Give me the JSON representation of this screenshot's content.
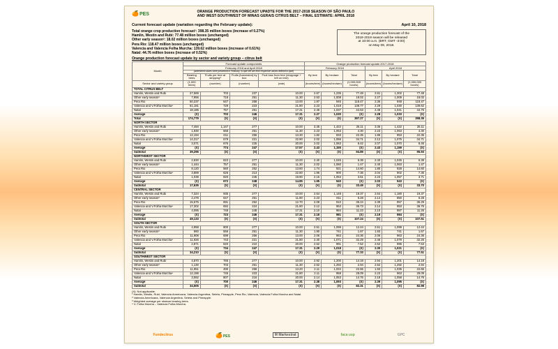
{
  "header": {
    "brand": "PES",
    "title_l1": "ORANGE PRODUCTION FORECAST UPADTE FOR THE 2017-2018 SEASON OF SÃO PAULO",
    "title_l2": "AND WEST-SOUTHWEST OF MINAS GERAIS CITRUS BELT – FINAL ESTIMATE: APRIL 2018"
  },
  "meta": {
    "current_label": "Current forecast update (variation regarding the February update):",
    "date": "April 10, 2018"
  },
  "summary_lines": [
    {
      "b": "Total orange crop production forecast¹: 398.35 million boxes (increase of 0.27%)"
    },
    {
      "b": "Hamlin, Westin and Rubi: 77.48 million boxes (unchanged)"
    },
    {
      "b": "Other early season²: 18.02 million boxes (unchanged)"
    },
    {
      "b": "Pera Rio: 118.47 million boxes (unchanged)"
    },
    {
      "b": "Valencia and Valencia Folha Murcha: 139.62 million boxes (increase of 0.61%)"
    },
    {
      "b": "Natal: 44.76 million boxes (increase of 0.52%)"
    }
  ],
  "callout": {
    "l1": "The orange production forecast of the",
    "l2": "2018-2019 season will be released",
    "l3": "at 10:00 a.m. (BRT, GMT -3:00)",
    "l4": "on May 09, 2018."
  },
  "table_heading": "Orange production forecast update by sector and variety group – citrus belt",
  "col_headers": {
    "h_fc": "Forecast update components",
    "h_fc2": "February 2018 and April 2018",
    "h_note": "(underlined values were presented in February. In April left are their respective values defined in April)",
    "h_opf": "Orange production forecast update 2017-2018",
    "h_feb": "February 2018",
    "h_apr": "April 2018",
    "c1": "Bearing trees",
    "c2": "Fruits per tree at stripping³",
    "c3": "Fruits (harvested) by box",
    "c4": "Fruit loss from tree (droppage + left on tree)",
    "c5": "By tree",
    "c6": "By hectare",
    "c7": "Total",
    "c8": "By tree",
    "c9": "By hectare",
    "c10": "Total",
    "u1": "(1,000 trees)",
    "u2": "(number)",
    "u3": "(number)",
    "u4": "(rate)",
    "u5": "(boxes/tree)",
    "u6": "(boxes/hectare)",
    "u7": "(1,000,000 boxes)",
    "u8": "(boxes/tree)",
    "u9": "(boxes/hectare)",
    "u10": "(1,000,000 boxes)",
    "mon": "Month",
    "svg": "Sector and variety group"
  },
  "groups": [
    {
      "name": "TOTAL CITRUS BELT",
      "rows": [
        [
          "Hamlin, Westin and Rubi",
          "27,569",
          "703",
          "237",
          "10.00",
          "2.67",
          "1,235",
          "77.48",
          "2.81",
          "1,302",
          "77.48"
        ],
        [
          "Other early season²",
          "7,956",
          "718",
          "251",
          "11.30",
          "2.53",
          "1,008",
          "18.02",
          "2.27",
          "1,009",
          "18.02"
        ],
        [
          "Pera Rio",
          "50,237",
          "647",
          "258",
          "13.00",
          "1.97",
          "945",
          "118.47",
          "2.36",
          "948",
          "118.47"
        ],
        [
          "Valencia and V.Folha Murcha⁴",
          "61,181",
          "729",
          "223",
          "21.80",
          "2.23",
          "1,018",
          "138.77",
          "2.29",
          "1,030",
          "139.62"
        ],
        [
          "Natal",
          "18,185",
          "757",
          "251",
          "17.31",
          "2.46",
          "1,037",
          "44.53",
          "2.48",
          "1,041",
          "44.76"
        ],
        [
          "Average",
          "(X)",
          "703",
          "246",
          "17.31",
          "2.27",
          "1,030",
          "(X)",
          "2.28",
          "1,033",
          "(X)"
        ],
        [
          "Total",
          "174,779",
          "(X)",
          "(X)",
          "(X)",
          "(X)",
          "(X)",
          "397.27",
          "(X)",
          "(X)",
          "398.35"
        ]
      ]
    },
    {
      "name": "NORTH SECTOR",
      "rows": [
        [
          "Hamlin, Westin and Rubi",
          "7,494",
          "1,147",
          "277",
          "10.00",
          "3.35",
          "1,422",
          "25.11",
          "3.35",
          "1,422",
          "25.11"
        ],
        [
          "Other early season²",
          "1,930",
          "668",
          "251",
          "11.30",
          "2.23",
          "1,053",
          "4.30",
          "2.23",
          "1,053",
          "4.30"
        ],
        [
          "Pera Rio",
          "12,194",
          "611",
          "255",
          "13.30",
          "1.82",
          "933",
          "22.35",
          "1.86",
          "953",
          "22.35"
        ],
        [
          "Valencia and V.Folha Murcha⁴",
          "14,317",
          "679",
          "221",
          "22.90",
          "2.02",
          "1,066",
          "34.71",
          "2.12",
          "1,075",
          "34.71"
        ],
        [
          "Natal",
          "3,071",
          "676",
          "225",
          "20.00",
          "2.02",
          "1,063",
          "8.42",
          "2.07",
          "1,070",
          "8.46"
        ],
        [
          "Average",
          "(X)",
          "774",
          "247",
          "17.57",
          "2.43",
          "1,155",
          "(X)",
          "2.43",
          "1,159",
          "(X)"
        ],
        [
          "Subtotal",
          "39,296",
          "(X)",
          "(X)",
          "(X)",
          "(X)",
          "(X)",
          "94.89",
          "(X)",
          "(X)",
          "95.93"
        ]
      ]
    },
    {
      "name": "NORTHWEST SECTOR",
      "rows": [
        [
          "Hamlin, Westin and Rubi",
          "2,830",
          "823",
          "277",
          "10.00",
          "2.40",
          "1,045",
          "6.38",
          "2.40",
          "1,045",
          "6.38"
        ],
        [
          "Other early season²",
          "1,444",
          "757",
          "251",
          "11.30",
          "2.02",
          "1,060",
          "1.47",
          "2.40",
          "1,063",
          "1.47"
        ],
        [
          "Pera Rio",
          "8,120",
          "560",
          "252",
          "13.60",
          "1.74",
          "921",
          "14.60",
          "1.80",
          "928",
          "14.60"
        ],
        [
          "Valencia and V.Folha Murcha⁴",
          "3,889",
          "626",
          "213",
          "22.80",
          "1.96",
          "900",
          "7.36",
          "2.04",
          "902",
          "7.36"
        ],
        [
          "Natal",
          "1,038",
          "820",
          "245",
          "19.90",
          "2.15",
          "1,053",
          "3.51",
          "2.23",
          "1,057",
          "3.71"
        ],
        [
          "Average",
          "(X)",
          "672",
          "248",
          "14.85",
          "1.95",
          "940",
          "(X)",
          "2.03",
          "943",
          "(X)"
        ],
        [
          "Subtotal",
          "17,635",
          "(X)",
          "(X)",
          "(X)",
          "(X)",
          "(X)",
          "33.49",
          "(X)",
          "(X)",
          "33.70"
        ]
      ]
    },
    {
      "name": "CENTRAL SECTOR",
      "rows": [
        [
          "Hamlin, Westin and Rubi",
          "7,324",
          "935",
          "277",
          "10.00",
          "2.64",
          "1,148",
          "19.37",
          "2.64",
          "1,180",
          "19.37"
        ],
        [
          "Other early season²",
          "2,478",
          "647",
          "251",
          "11.80",
          "2.23",
          "811",
          "6.28",
          "2.14",
          "850",
          "6.28"
        ],
        [
          "Pera Rio",
          "15,575",
          "691",
          "252",
          "12.70",
          "2.08",
          "910",
          "36.24",
          "2.39",
          "957",
          "36.29"
        ],
        [
          "Valencia and V.Folha Murcha⁴",
          "17,302",
          "692",
          "224",
          "21.80",
          "2.12",
          "953",
          "36.73",
          "2.14",
          "953",
          "36.76"
        ],
        [
          "Natal",
          "4,095",
          "748",
          "248",
          "17.31",
          "2.10",
          "984",
          "11.23",
          "2.10",
          "987",
          "11.26"
        ],
        [
          "Average",
          "(X)",
          "723",
          "246",
          "17.31",
          "2.18",
          "981",
          "(X)",
          "2.19",
          "984",
          "(X)"
        ],
        [
          "Subtotal",
          "49,133",
          "(X)",
          "(X)",
          "(X)",
          "(X)",
          "(X)",
          "107.24",
          "(X)",
          "(X)",
          "107.51"
        ]
      ]
    },
    {
      "name": "SOUTH SECTOR",
      "rows": [
        [
          "Hamlin, Westin and Rubi",
          "4,958",
          "800",
          "277",
          "10.00",
          "2.51",
          "1,099",
          "12.44",
          "2.51",
          "1,099",
          "12.44"
        ],
        [
          "Other early season²",
          "860",
          "556",
          "251",
          "11.30",
          "1.90",
          "741",
          "1.67",
          "1.93",
          "741",
          "1.67"
        ],
        [
          "Pera Rio",
          "11,908",
          "699",
          "256",
          "13.00",
          "2.06",
          "963",
          "24.36",
          "2.06",
          "963",
          "24.36"
        ],
        [
          "Valencia and V.Folha Murcha⁴",
          "11,926",
          "743",
          "221",
          "21.80",
          "2.40",
          "1,071",
          "32.29",
          "2.46",
          "1,079",
          "32.26"
        ],
        [
          "Natal",
          "2,871",
          "820",
          "210",
          "20.00",
          "2.52",
          "991",
          "7.52",
          "2.52",
          "996",
          "7.53"
        ],
        [
          "Average",
          "(X)",
          "734",
          "247",
          "17.31",
          "2.29",
          "1,018",
          "(X)",
          "2.30",
          "1,021",
          "(X)"
        ],
        [
          "Subtotal",
          "34,210",
          "(X)",
          "(X)",
          "(X)",
          "(X)",
          "(X)",
          "77.33",
          "(X)",
          "(X)",
          "77.51"
        ]
      ]
    },
    {
      "name": "SOUTHWEST SECTOR",
      "rows": [
        [
          "Hamlin, Westin and Rubi",
          "4,870",
          "766",
          "277",
          "10.00",
          "2.92",
          "1,200",
          "14.18",
          "2.94",
          "1,201",
          "14.18"
        ],
        [
          "Other early season²",
          "1,130",
          "703",
          "251",
          "11.30",
          "2.52",
          "1,292",
          "2.94",
          "2.52",
          "1,292",
          "2.94"
        ],
        [
          "Pera Rio",
          "11,951",
          "490",
          "258",
          "13.20",
          "2.11",
          "1,034",
          "22.65",
          "1.93",
          "1,035",
          "22.65"
        ],
        [
          "Valencia and V.Folha Murcha⁴",
          "12,188",
          "745",
          "223",
          "21.80",
          "2.11",
          "958",
          "28.09",
          "2.23",
          "963",
          "28.09"
        ],
        [
          "Natal",
          "3,062",
          "807",
          "216",
          "20.00",
          "2.14",
          "1,053",
          "14.76",
          "2.18",
          "1,058",
          "14.76"
        ],
        [
          "Average",
          "(X)",
          "700",
          "246",
          "17.31",
          "2.38",
          "1,093",
          "(X)",
          "2.39",
          "1,095",
          "(X)"
        ],
        [
          "Subtotal",
          "34,505",
          "(X)",
          "(X)",
          "(X)",
          "(X)",
          "(X)",
          "82.31",
          "(X)",
          "(X)",
          "82.98"
        ]
      ]
    }
  ],
  "footnotes": [
    "(X): Not applicable.",
    "¹ Hamlin, Westin, Rubi, Valencia Americana, Valencia Argentina, Seleta, Pineapple, Pera Rio, Valencia, Valencia Folha Murcha and Natal.",
    "² Valencia Americana, Valencia Argentina, Seleta and Pineapple.",
    "³ Weighted average per stratum bearing trees.",
    "⁴ V. Folha Murcha – Valencia Folha Murcha."
  ],
  "footer_logos": [
    "Fundecitrus",
    "PES",
    "M Markestrat",
    "faca usp",
    "GPC"
  ]
}
